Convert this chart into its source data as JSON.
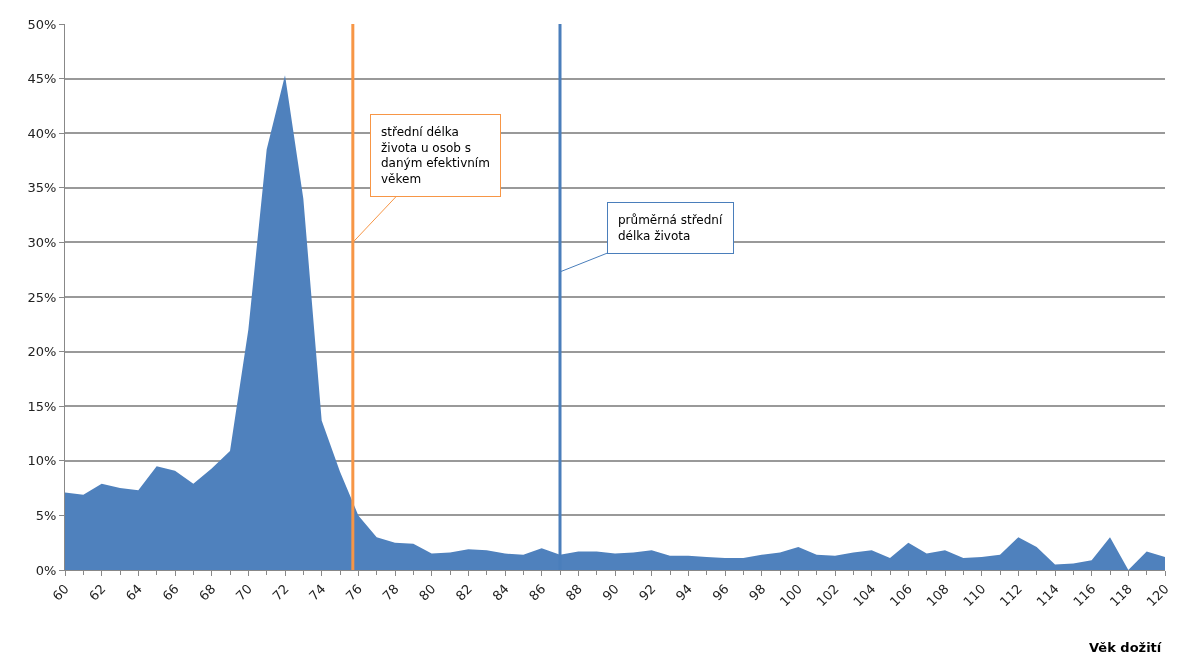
{
  "chart_data": {
    "type": "area",
    "xlabel": "Věk dožití",
    "x": [
      60,
      61,
      62,
      63,
      64,
      65,
      66,
      67,
      68,
      69,
      70,
      71,
      72,
      73,
      74,
      75,
      76,
      77,
      78,
      79,
      80,
      81,
      82,
      83,
      84,
      85,
      86,
      87,
      88,
      89,
      90,
      91,
      92,
      93,
      94,
      95,
      96,
      97,
      98,
      99,
      100,
      101,
      102,
      103,
      104,
      105,
      106,
      107,
      108,
      109,
      110,
      111,
      112,
      113,
      114,
      115,
      116,
      117,
      118,
      119,
      120
    ],
    "series": [
      {
        "color": "#4f81bd",
        "values": [
          7.1,
          6.9,
          7.9,
          7.5,
          7.3,
          9.5,
          9.1,
          7.9,
          9.3,
          10.9,
          22,
          38.5,
          45.3,
          34,
          13.7,
          9,
          5,
          3,
          2.5,
          2.4,
          1.5,
          1.6,
          1.9,
          1.8,
          1.5,
          1.4,
          2,
          1.4,
          1.7,
          1.7,
          1.5,
          1.6,
          1.8,
          1.3,
          1.3,
          1.2,
          1.1,
          1.1,
          1.4,
          1.6,
          2.1,
          1.4,
          1.3,
          1.6,
          1.8,
          1.1,
          2.5,
          1.5,
          1.8,
          1.1,
          1.2,
          1.4,
          3,
          2.1,
          0.5,
          0.6,
          0.9,
          3,
          0,
          1.7,
          1.2
        ]
      }
    ],
    "xlim": [
      60,
      120
    ],
    "xticks": [
      60,
      62,
      64,
      66,
      68,
      70,
      72,
      74,
      76,
      78,
      80,
      82,
      84,
      86,
      88,
      90,
      92,
      94,
      96,
      98,
      100,
      102,
      104,
      106,
      108,
      110,
      112,
      114,
      116,
      118,
      120
    ],
    "ylim": [
      0,
      50
    ],
    "yticks": [
      {
        "value": 0,
        "label": "0%"
      },
      {
        "value": 5,
        "label": "5%"
      },
      {
        "value": 10,
        "label": "10%"
      },
      {
        "value": 15,
        "label": "15%"
      },
      {
        "value": 20,
        "label": "20%"
      },
      {
        "value": 25,
        "label": "25%"
      },
      {
        "value": 30,
        "label": "30%"
      },
      {
        "value": 35,
        "label": "35%"
      },
      {
        "value": 40,
        "label": "40%"
      },
      {
        "value": 45,
        "label": "45%"
      },
      {
        "value": 50,
        "label": "50%"
      }
    ],
    "grid": "y",
    "ref_lines": [
      {
        "axis": "x",
        "value": 75.7,
        "label": "střední délka\nživota u osob s\ndaným efektivním\nvěkem",
        "color": "#f79646"
      },
      {
        "axis": "x",
        "value": 87,
        "label": "průměrná střední\ndélka života",
        "color": "#4a7ebb"
      }
    ]
  }
}
